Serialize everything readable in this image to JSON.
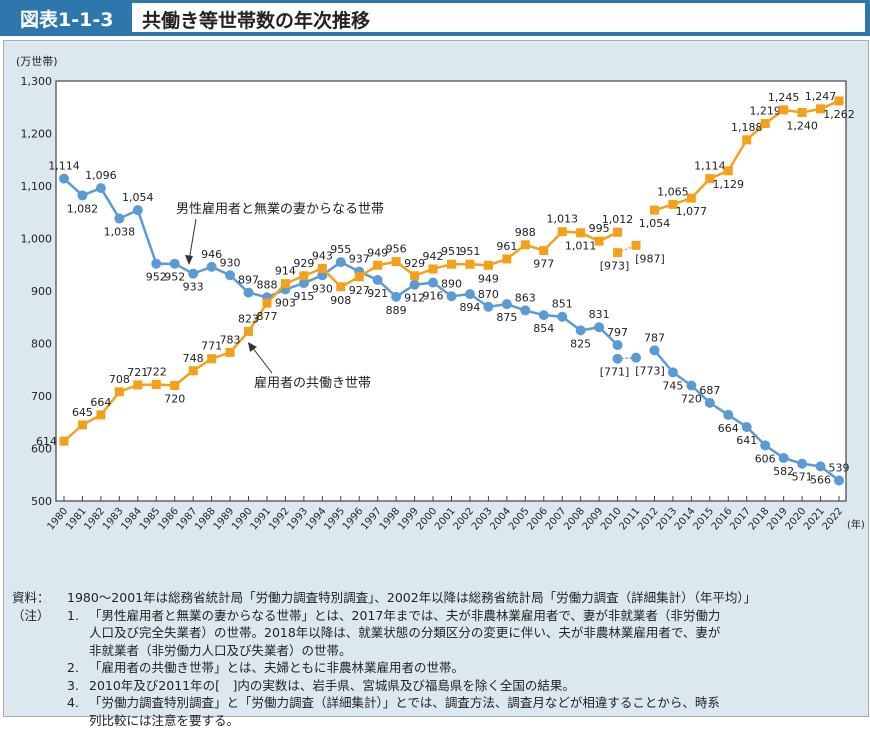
{
  "header": {
    "figure_number": "図表1-1-3",
    "title": "共働き等世帯数の年次推移"
  },
  "chart_data": {
    "type": "line",
    "title": "共働き等世帯数の年次推移",
    "ylabel": "(万世帯)",
    "xlabel": "(年)",
    "ylim": [
      500,
      1300
    ],
    "yticks": [
      "500",
      "600",
      "700",
      "800",
      "900",
      "1,000",
      "1,100",
      "1,200",
      "1,300"
    ],
    "x": [
      1980,
      1981,
      1982,
      1983,
      1984,
      1985,
      1986,
      1987,
      1988,
      1989,
      1990,
      1991,
      1992,
      1993,
      1994,
      1995,
      1996,
      1997,
      1998,
      1999,
      2000,
      2001,
      2002,
      2003,
      2004,
      2005,
      2006,
      2007,
      2008,
      2009,
      2010,
      2011,
      2012,
      2013,
      2014,
      2015,
      2016,
      2017,
      2018,
      2019,
      2020,
      2021,
      2022
    ],
    "grid": false,
    "series": [
      {
        "name": "男性雇用者と無業の妻からなる世帯",
        "color": "#5b9bd5",
        "marker": "circle",
        "values": [
          1114,
          1082,
          1096,
          1038,
          1054,
          952,
          952,
          933,
          946,
          930,
          897,
          888,
          903,
          915,
          930,
          955,
          937,
          921,
          889,
          912,
          916,
          890,
          894,
          870,
          875,
          863,
          854,
          851,
          825,
          831,
          797,
          null,
          787,
          745,
          720,
          687,
          664,
          641,
          606,
          582,
          571,
          566,
          539
        ],
        "bracketed": [
          {
            "x": 2010,
            "value": 771,
            "label": "[771]"
          },
          {
            "x": 2011,
            "value": 773,
            "label": "[773]"
          }
        ]
      },
      {
        "name": "雇用者の共働き世帯",
        "color": "#f5a01a",
        "marker": "square",
        "values": [
          614,
          645,
          664,
          708,
          721,
          722,
          720,
          748,
          771,
          783,
          823,
          877,
          914,
          929,
          943,
          908,
          927,
          949,
          956,
          929,
          942,
          951,
          951,
          949,
          961,
          988,
          977,
          1013,
          1011,
          995,
          1012,
          null,
          1054,
          1065,
          1077,
          1114,
          1129,
          1188,
          1219,
          1245,
          1240,
          1247,
          1262
        ],
        "bracketed": [
          {
            "x": 2010,
            "value": 973,
            "label": "[973]"
          },
          {
            "x": 2011,
            "value": 987,
            "label": "[987]"
          }
        ]
      }
    ]
  },
  "notes": {
    "source_label": "資料：",
    "source": "1980～2001年は総務省統計局「労働力調査特別調査」、2002年以降は総務省統計局「労働力調査（詳細集計）（年平均）」",
    "notes_label": "（注）",
    "items": [
      {
        "num": "1.",
        "lines": [
          "「男性雇用者と無業の妻からなる世帯」とは、2017年までは、夫が非農林業雇用者で、妻が非就業者（非労働力",
          "人口及び完全失業者）の世帯。2018年以降は、就業状態の分類区分の変更に伴い、夫が非農林業雇用者で、妻が",
          "非就業者（非労働力人口及び失業者）の世帯。"
        ]
      },
      {
        "num": "2.",
        "lines": [
          "「雇用者の共働き世帯」とは、夫婦ともに非農林業雇用者の世帯。"
        ]
      },
      {
        "num": "3.",
        "lines": [
          "2010年及び2011年の[　]内の実数は、岩手県、宮城県及び福島県を除く全国の結果。"
        ]
      },
      {
        "num": "4.",
        "lines": [
          "「労働力調査特別調査」と「労働力調査（詳細集計）」とでは、調査方法、調査月などが相違することから、時系",
          "列比較には注意を要する。"
        ]
      }
    ]
  }
}
